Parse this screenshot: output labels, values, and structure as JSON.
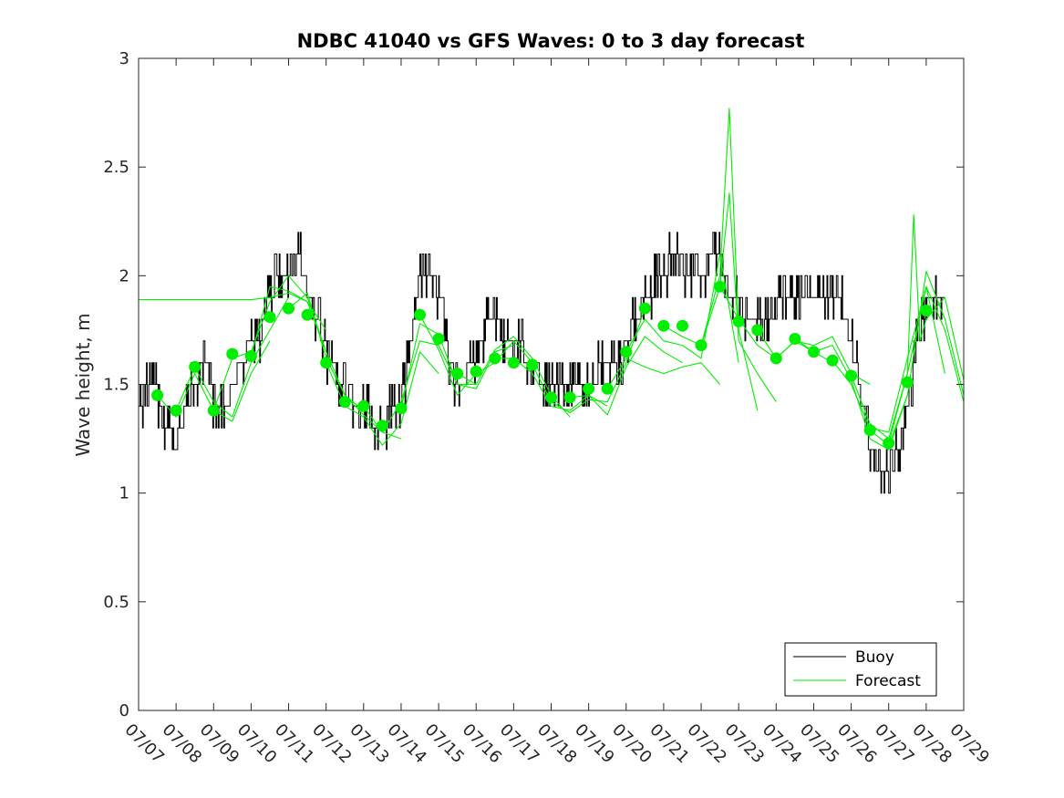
{
  "chart_data": {
    "type": "line",
    "title": "NDBC 41040 vs GFS Waves: 0 to 3 day forecast",
    "xlabel": "",
    "ylabel": "Wave height, m",
    "xlim": [
      "07/07",
      "07/29"
    ],
    "ylim": [
      0,
      3
    ],
    "x_ticks": [
      "07/07",
      "07/08",
      "07/09",
      "07/10",
      "07/11",
      "07/12",
      "07/13",
      "07/14",
      "07/15",
      "07/16",
      "07/17",
      "07/18",
      "07/19",
      "07/20",
      "07/21",
      "07/22",
      "07/23",
      "07/24",
      "07/25",
      "07/26",
      "07/27",
      "07/28",
      "07/29"
    ],
    "y_ticks": [
      "0",
      "0.5",
      "1",
      "1.5",
      "2",
      "2.5",
      "3"
    ],
    "legend": {
      "placement": "bottom-right",
      "entries": [
        "Buoy",
        "Forecast"
      ]
    },
    "colors": {
      "buoy": "#000000",
      "forecast": "#00ee00",
      "axes": "#262626"
    },
    "series": [
      {
        "name": "Buoy",
        "x": [
          "07/07 00:00",
          "07/07 06:00",
          "07/07 12:00",
          "07/07 18:00",
          "07/08 00:00",
          "07/08 06:00",
          "07/08 12:00",
          "07/08 18:00",
          "07/09 00:00",
          "07/09 06:00",
          "07/09 12:00",
          "07/09 18:00",
          "07/10 00:00",
          "07/10 06:00",
          "07/10 12:00",
          "07/10 18:00",
          "07/11 00:00",
          "07/11 06:00",
          "07/11 12:00",
          "07/11 18:00",
          "07/12 00:00",
          "07/12 06:00",
          "07/12 12:00",
          "07/12 18:00",
          "07/13 00:00",
          "07/13 06:00",
          "07/13 12:00",
          "07/13 18:00",
          "07/14 00:00",
          "07/14 06:00",
          "07/14 12:00",
          "07/14 18:00",
          "07/15 00:00",
          "07/15 06:00",
          "07/15 12:00",
          "07/15 18:00",
          "07/16 00:00",
          "07/16 06:00",
          "07/16 12:00",
          "07/16 18:00",
          "07/17 00:00",
          "07/17 06:00",
          "07/17 12:00",
          "07/17 18:00",
          "07/18 00:00",
          "07/18 06:00",
          "07/18 12:00",
          "07/18 18:00",
          "07/19 00:00",
          "07/19 06:00",
          "07/19 12:00",
          "07/19 18:00",
          "07/20 00:00",
          "07/20 06:00",
          "07/20 12:00",
          "07/20 18:00",
          "07/21 00:00",
          "07/21 06:00",
          "07/21 12:00",
          "07/21 18:00",
          "07/22 00:00",
          "07/22 06:00",
          "07/22 12:00",
          "07/22 18:00",
          "07/23 00:00",
          "07/23 06:00",
          "07/23 12:00",
          "07/23 18:00",
          "07/24 00:00",
          "07/24 06:00",
          "07/24 12:00",
          "07/24 18:00",
          "07/25 00:00",
          "07/25 06:00",
          "07/25 12:00",
          "07/25 18:00",
          "07/26 00:00",
          "07/26 06:00",
          "07/26 12:00",
          "07/26 18:00",
          "07/27 00:00",
          "07/27 06:00",
          "07/27 12:00",
          "07/27 18:00",
          "07/28 00:00",
          "07/28 06:00",
          "07/28 12:00"
        ],
        "values": [
          1.4,
          1.5,
          1.45,
          1.3,
          1.2,
          1.4,
          1.5,
          1.6,
          1.4,
          1.35,
          1.5,
          1.6,
          1.7,
          1.75,
          1.9,
          2.0,
          2.0,
          2.1,
          1.9,
          1.8,
          1.65,
          1.55,
          1.45,
          1.4,
          1.4,
          1.3,
          1.3,
          1.4,
          1.4,
          1.7,
          2.0,
          2.05,
          1.9,
          1.6,
          1.5,
          1.55,
          1.6,
          1.75,
          1.8,
          1.7,
          1.7,
          1.65,
          1.6,
          1.5,
          1.5,
          1.5,
          1.55,
          1.45,
          1.5,
          1.55,
          1.6,
          1.55,
          1.7,
          1.8,
          1.9,
          1.95,
          2.0,
          2.1,
          2.05,
          2.0,
          2.0,
          2.1,
          2.05,
          1.9,
          1.9,
          1.8,
          1.75,
          1.8,
          1.85,
          1.9,
          1.9,
          1.9,
          1.85,
          1.9,
          1.9,
          1.85,
          1.7,
          1.45,
          1.2,
          1.1,
          1.05,
          1.2,
          1.4,
          1.7,
          1.85,
          1.85,
          1.9
        ]
      },
      {
        "name": "Forecast",
        "x": [
          "07/07 12:00",
          "07/08 00:00",
          "07/08 12:00",
          "07/09 00:00",
          "07/09 12:00",
          "07/10 00:00",
          "07/10 12:00",
          "07/11 00:00",
          "07/11 12:00",
          "07/12 00:00",
          "07/12 12:00",
          "07/13 00:00",
          "07/13 12:00",
          "07/14 00:00",
          "07/14 12:00",
          "07/15 00:00",
          "07/15 12:00",
          "07/16 00:00",
          "07/16 12:00",
          "07/17 00:00",
          "07/17 12:00",
          "07/18 00:00",
          "07/18 12:00",
          "07/19 00:00",
          "07/19 12:00",
          "07/20 00:00",
          "07/20 12:00",
          "07/21 00:00",
          "07/21 12:00",
          "07/22 00:00",
          "07/22 12:00",
          "07/23 00:00",
          "07/23 12:00",
          "07/24 00:00",
          "07/24 12:00",
          "07/25 00:00",
          "07/25 12:00",
          "07/26 00:00",
          "07/26 12:00",
          "07/27 00:00",
          "07/27 12:00",
          "07/28 00:00"
        ],
        "values": [
          1.45,
          1.38,
          1.58,
          1.38,
          1.64,
          1.63,
          1.81,
          1.85,
          1.82,
          1.6,
          1.42,
          1.4,
          1.31,
          1.39,
          1.82,
          1.71,
          1.55,
          1.56,
          1.62,
          1.6,
          1.59,
          1.44,
          1.44,
          1.48,
          1.48,
          1.65,
          1.85,
          1.77,
          1.77,
          1.68,
          1.95,
          1.79,
          1.75,
          1.62,
          1.71,
          1.65,
          1.61,
          1.54,
          1.29,
          1.23,
          1.51,
          1.84
        ]
      }
    ],
    "forecast_runs": [
      {
        "x": [
          "07/07 00:00",
          "07/10 00:00",
          "07/10 12:00",
          "07/11 00:00",
          "07/11 12:00",
          "07/12 00:00"
        ],
        "values": [
          1.89,
          1.89,
          1.9,
          1.92,
          1.88,
          1.75
        ]
      },
      {
        "x": [
          "07/07 12:00",
          "07/08 00:00",
          "07/08 12:00",
          "07/09 00:00",
          "07/09 12:00",
          "07/10 00:00",
          "07/10 12:00"
        ],
        "values": [
          1.45,
          1.35,
          1.55,
          1.38,
          1.33,
          1.55,
          1.7
        ]
      },
      {
        "x": [
          "07/08 00:00",
          "07/08 12:00",
          "07/09 00:00",
          "07/09 12:00",
          "07/10 00:00",
          "07/10 12:00",
          "07/11 00:00"
        ],
        "values": [
          1.38,
          1.58,
          1.42,
          1.35,
          1.6,
          1.75,
          1.9
        ]
      },
      {
        "x": [
          "07/09 00:00",
          "07/09 12:00",
          "07/10 00:00",
          "07/10 12:00",
          "07/11 00:00",
          "07/11 12:00",
          "07/12 00:00"
        ],
        "values": [
          1.38,
          1.62,
          1.65,
          1.88,
          2.0,
          1.9,
          1.65
        ]
      },
      {
        "x": [
          "07/10 00:00",
          "07/10 12:00",
          "07/11 00:00",
          "07/11 12:00",
          "07/12 00:00",
          "07/12 12:00",
          "07/13 00:00"
        ],
        "values": [
          1.63,
          1.95,
          1.93,
          1.88,
          1.65,
          1.45,
          1.38
        ]
      },
      {
        "x": [
          "07/11 00:00",
          "07/11 12:00",
          "07/12 00:00",
          "07/12 12:00",
          "07/13 00:00",
          "07/13 12:00",
          "07/14 00:00"
        ],
        "values": [
          1.85,
          1.92,
          1.62,
          1.45,
          1.36,
          1.28,
          1.25
        ]
      },
      {
        "x": [
          "07/12 00:00",
          "07/12 12:00",
          "07/13 00:00",
          "07/13 12:00",
          "07/14 00:00",
          "07/14 12:00",
          "07/15 00:00"
        ],
        "values": [
          1.6,
          1.4,
          1.35,
          1.22,
          1.32,
          1.65,
          1.55
        ]
      },
      {
        "x": [
          "07/13 00:00",
          "07/13 12:00",
          "07/14 00:00",
          "07/14 12:00",
          "07/15 00:00",
          "07/15 12:00",
          "07/16 00:00"
        ],
        "values": [
          1.4,
          1.28,
          1.42,
          1.7,
          1.68,
          1.5,
          1.5
        ]
      },
      {
        "x": [
          "07/14 00:00",
          "07/14 12:00",
          "07/15 00:00",
          "07/15 12:00",
          "07/16 00:00",
          "07/16 12:00",
          "07/17 00:00"
        ],
        "values": [
          1.39,
          1.78,
          1.73,
          1.5,
          1.48,
          1.65,
          1.68
        ]
      },
      {
        "x": [
          "07/14 12:00",
          "07/15 00:00",
          "07/15 12:00",
          "07/16 00:00",
          "07/16 12:00",
          "07/17 00:00",
          "07/17 12:00"
        ],
        "values": [
          1.82,
          1.66,
          1.45,
          1.55,
          1.6,
          1.7,
          1.6
        ]
      },
      {
        "x": [
          "07/15 12:00",
          "07/16 00:00",
          "07/16 12:00",
          "07/17 00:00",
          "07/17 12:00",
          "07/18 00:00",
          "07/18 12:00"
        ],
        "values": [
          1.55,
          1.5,
          1.66,
          1.72,
          1.62,
          1.45,
          1.35
        ]
      },
      {
        "x": [
          "07/16 12:00",
          "07/17 00:00",
          "07/17 12:00",
          "07/18 00:00",
          "07/18 12:00",
          "07/19 00:00",
          "07/19 12:00"
        ],
        "values": [
          1.62,
          1.62,
          1.55,
          1.4,
          1.38,
          1.45,
          1.4
        ]
      },
      {
        "x": [
          "07/17 12:00",
          "07/18 00:00",
          "07/18 12:00",
          "07/19 00:00",
          "07/19 12:00",
          "07/20 00:00",
          "07/20 12:00"
        ],
        "values": [
          1.59,
          1.42,
          1.37,
          1.43,
          1.42,
          1.6,
          1.85
        ]
      },
      {
        "x": [
          "07/18 12:00",
          "07/19 00:00",
          "07/19 12:00",
          "07/20 00:00",
          "07/20 12:00",
          "07/21 00:00",
          "07/21 12:00"
        ],
        "values": [
          1.44,
          1.45,
          1.36,
          1.58,
          1.72,
          1.65,
          1.6
        ]
      },
      {
        "x": [
          "07/19 12:00",
          "07/20 00:00",
          "07/20 12:00",
          "07/21 00:00",
          "07/21 12:00",
          "07/22 00:00",
          "07/22 12:00"
        ],
        "values": [
          1.48,
          1.62,
          1.58,
          1.55,
          1.58,
          1.6,
          1.5
        ]
      },
      {
        "x": [
          "07/20 00:00",
          "07/20 12:00",
          "07/21 00:00",
          "07/21 12:00",
          "07/22 00:00",
          "07/22 12:00",
          "07/23 00:00"
        ],
        "values": [
          1.65,
          1.8,
          1.7,
          1.68,
          1.62,
          2.1,
          1.6
        ]
      },
      {
        "x": [
          "07/21 00:00",
          "07/21 12:00",
          "07/22 00:00",
          "07/22 12:00",
          "07/22 18:00",
          "07/23 00:00",
          "07/23 12:00"
        ],
        "values": [
          1.77,
          1.72,
          1.68,
          2.0,
          2.77,
          1.75,
          1.38
        ]
      },
      {
        "x": [
          "07/22 00:00",
          "07/22 12:00",
          "07/22 18:00",
          "07/23 00:00",
          "07/23 12:00",
          "07/24 00:00"
        ],
        "values": [
          1.68,
          1.95,
          2.38,
          1.7,
          1.55,
          1.42
        ]
      },
      {
        "x": [
          "07/22 12:00",
          "07/23 00:00",
          "07/23 12:00",
          "07/24 00:00",
          "07/24 12:00",
          "07/25 00:00",
          "07/25 12:00"
        ],
        "values": [
          1.95,
          1.8,
          1.68,
          1.62,
          1.7,
          1.65,
          1.6
        ]
      },
      {
        "x": [
          "07/23 12:00",
          "07/24 00:00",
          "07/24 12:00",
          "07/25 00:00",
          "07/25 12:00",
          "07/26 00:00",
          "07/26 12:00"
        ],
        "values": [
          1.75,
          1.62,
          1.7,
          1.68,
          1.72,
          1.55,
          1.5
        ]
      },
      {
        "x": [
          "07/24 12:00",
          "07/25 00:00",
          "07/25 12:00",
          "07/26 00:00",
          "07/26 12:00",
          "07/27 00:00",
          "07/27 12:00"
        ],
        "values": [
          1.71,
          1.65,
          1.68,
          1.52,
          1.25,
          1.2,
          1.45
        ]
      },
      {
        "x": [
          "07/25 12:00",
          "07/26 00:00",
          "07/26 12:00",
          "07/27 00:00",
          "07/27 12:00",
          "07/28 00:00",
          "07/28 12:00"
        ],
        "values": [
          1.61,
          1.5,
          1.3,
          1.28,
          1.62,
          1.95,
          1.55
        ]
      },
      {
        "x": [
          "07/26 00:00",
          "07/26 12:00",
          "07/27 00:00",
          "07/27 12:00",
          "07/27 16:00",
          "07/27 20:00",
          "07/28 00:00",
          "07/28 12:00",
          "07/29 00:00"
        ],
        "values": [
          1.54,
          1.32,
          1.25,
          1.55,
          2.28,
          1.7,
          1.8,
          1.9,
          1.52
        ]
      },
      {
        "x": [
          "07/26 12:00",
          "07/27 00:00",
          "07/27 12:00",
          "07/28 00:00",
          "07/28 12:00",
          "07/29 00:00"
        ],
        "values": [
          1.29,
          1.22,
          1.45,
          2.02,
          1.8,
          1.45
        ]
      },
      {
        "x": [
          "07/27 00:00",
          "07/27 12:00",
          "07/28 00:00",
          "07/28 12:00",
          "07/29 00:00"
        ],
        "values": [
          1.23,
          1.55,
          1.95,
          1.75,
          1.42
        ]
      }
    ]
  }
}
